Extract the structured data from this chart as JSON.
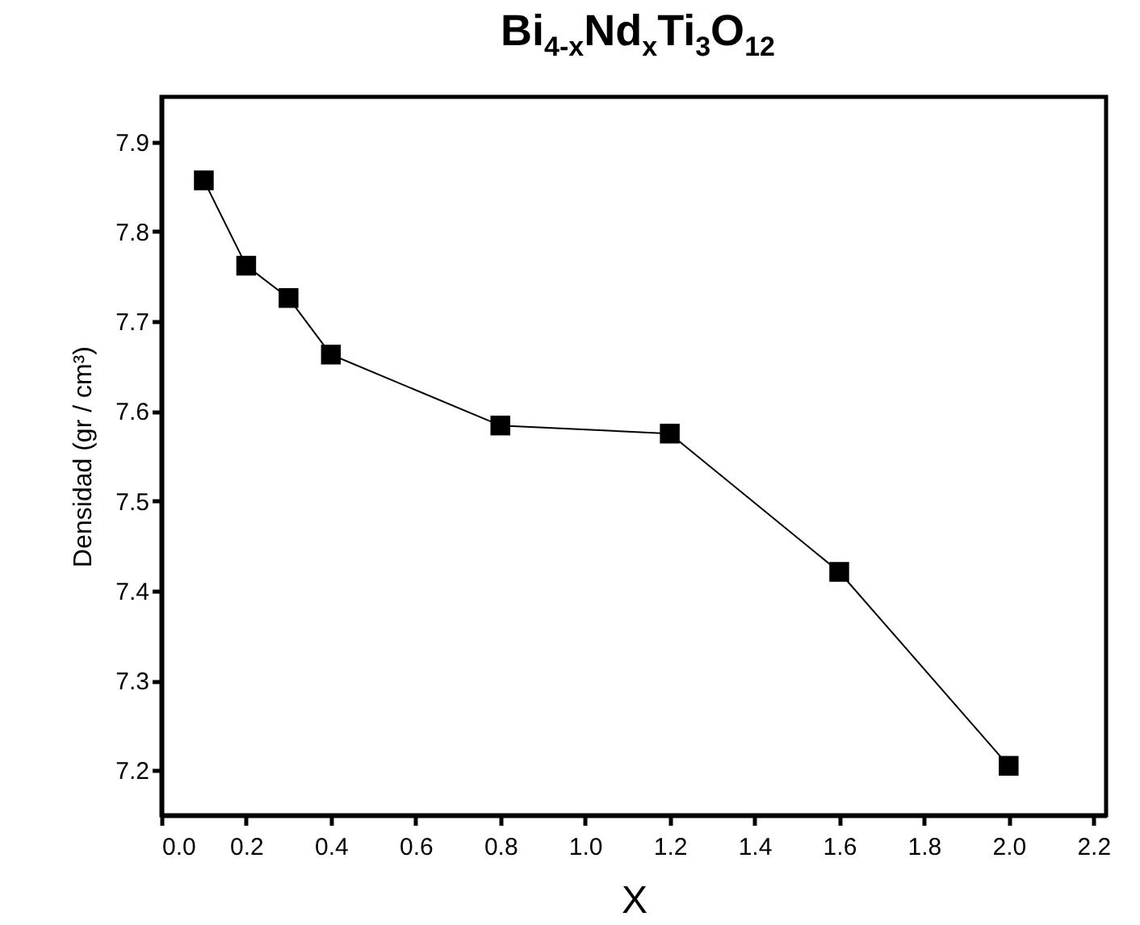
{
  "chart_data": {
    "type": "line",
    "title": "Bi$_{4-x}$Nd$_{x}$Ti$_{3}$O$_{12}$",
    "xlabel": "X",
    "ylabel": "Densidad (gr / cm³)",
    "x": [
      0.1,
      0.2,
      0.3,
      0.4,
      0.8,
      1.2,
      1.6,
      2.0
    ],
    "series": [
      {
        "color": "#000000",
        "values": [
          7.857,
          7.762,
          7.726,
          7.663,
          7.584,
          7.575,
          7.421,
          7.205
        ]
      }
    ],
    "xlim": [
      0,
      2.23
    ],
    "xticks": [
      {
        "value": 0,
        "label": "0.0"
      },
      0.2,
      0.4,
      0.6,
      0.8,
      {
        "value": 1,
        "label": "1.0"
      },
      1.2,
      1.4,
      1.6,
      1.8,
      {
        "value": 2,
        "label": "2.0"
      },
      2.2
    ],
    "ylim": [
      7.15,
      7.95
    ],
    "yticks": [
      7.2,
      7.3,
      7.4,
      7.5,
      7.6,
      7.7,
      7.8,
      7.9
    ],
    "grid": false,
    "legend": false,
    "marker": "square",
    "line_style": "solid"
  }
}
